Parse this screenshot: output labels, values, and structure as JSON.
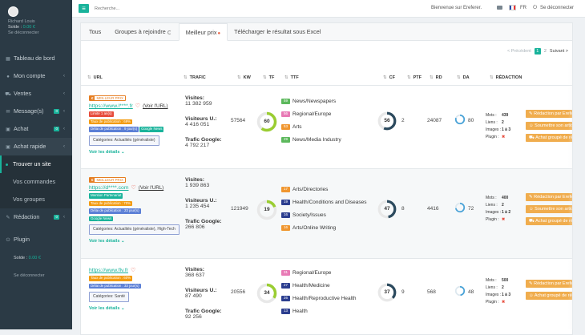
{
  "user": {
    "name": "Richard Louis",
    "balance_label": "Solde :",
    "balance": "0.00 €",
    "logout": "Se déconnecter"
  },
  "nav": [
    {
      "label": "Tableau de bord",
      "icon": "grid-icon"
    },
    {
      "label": "Mon compte",
      "icon": "user-icon",
      "chevron": true
    },
    {
      "label": "Ventes",
      "icon": "cart-icon",
      "chevron": true
    },
    {
      "label": "Message(s)",
      "icon": "envelope-icon",
      "badge": "0",
      "chevron": true
    },
    {
      "label": "Achat",
      "icon": "bag-icon",
      "badge": "0",
      "chevron": true
    },
    {
      "label": "Achat rapide",
      "icon": "bag-icon",
      "chevron": true,
      "open": true
    }
  ],
  "subnav": [
    {
      "label": "Trouver un site",
      "active": true
    },
    {
      "label": "Vos commandes",
      "active": false
    },
    {
      "label": "Vos groupes",
      "active": false
    }
  ],
  "nav2": [
    {
      "label": "Rédaction",
      "icon": "pencil-icon",
      "badge": "0",
      "chevron": true
    }
  ],
  "plugin": {
    "label": "Plugin",
    "balance_label": "Solde :",
    "balance": "0.00 €",
    "logout": "Se déconnecter"
  },
  "topbar": {
    "search_placeholder": "Recherche...",
    "welcome": "Bienvenue sur Ereferer.",
    "lang": "FR",
    "logout": "Se déconnecter"
  },
  "tabs": [
    {
      "label": "Tous",
      "active": false
    },
    {
      "label": "Groupes à rejoindre",
      "active": false,
      "spinner": true
    },
    {
      "label": "Meilleur prix",
      "active": true,
      "fire": true
    },
    {
      "label": "Télécharger le résultat sous Excel",
      "active": false
    }
  ],
  "pager": {
    "prev": "< Précédent",
    "current": "1",
    "page2": "2",
    "next": "Suivant >"
  },
  "columns": [
    "URL",
    "TRAFIC",
    "KW",
    "TF",
    "TTF",
    "CF",
    "PTF",
    "RD",
    "DA",
    "RÉDACTION"
  ],
  "rows": [
    {
      "best": true,
      "best_label": "MEILLEUR PRIX",
      "best_icon": "€",
      "url": "https://www.l****.fr",
      "voir": "(Voir l'URL)",
      "tags": [
        [
          {
            "text": "Limité 1 an(s)",
            "color": "red"
          }
        ],
        [
          {
            "text": "Taux de publication : 69%",
            "color": "orange"
          }
        ],
        [
          {
            "text": "Délai de publication : 9 jour(s)",
            "color": "blue"
          },
          {
            "text": "Google News",
            "color": "green"
          }
        ]
      ],
      "category": "Catégories: Actualités (généraliste)",
      "details": "Voir les détails ⌄",
      "visits_label": "Visites:",
      "visits": "11 382 959",
      "vu_label": "Visiteurs U.:",
      "vu": "4 416 051",
      "tg_label": "Trafic Google:",
      "tg": "4 792 217",
      "kw": "57564",
      "tf": "60",
      "tf_pct": 0.6,
      "cf": "56",
      "cf_pct": 0.56,
      "ptf": "2",
      "rd": "24087",
      "da": "80",
      "da_pct": 0.8,
      "ttf": [
        {
          "n": "59",
          "label": "News/Newspapers",
          "color": "#5cb85c"
        },
        {
          "n": "56",
          "label": "Regional/Europe",
          "color": "#e87ab5"
        },
        {
          "n": "53",
          "label": "Arts",
          "color": "#f0962f"
        },
        {
          "n": "29",
          "label": "News/Media Industry",
          "color": "#5cb85c"
        }
      ],
      "red": {
        "mots_label": "Mots :",
        "mots": "439",
        "liens_label": "Liens :",
        "liens": "2",
        "images_label": "Images :",
        "images": "1 à 3",
        "plugin_label": "Plugin :",
        "plugin": "✖"
      },
      "buttons": [
        "Rédaction par Ereferer",
        "Soumettre son article",
        "Achat groupé de rédaction"
      ]
    },
    {
      "best": true,
      "best_label": "MEILLEUR PRIX",
      "best_icon": "€",
      "url": "https://d****.com",
      "voir": "(Voir l'URL)",
      "tags": [
        [
          {
            "text": "Mention Partenariat",
            "color": "green"
          }
        ],
        [
          {
            "text": "Taux de publication : 70%",
            "color": "orange"
          }
        ],
        [
          {
            "text": "Délai de publication : 23 jour(s)",
            "color": "blue"
          }
        ],
        [
          {
            "text": "Google News",
            "color": "green"
          }
        ]
      ],
      "category": "Catégories: Actualités (généraliste), High-Tech",
      "details": "Voir les détails ⌄",
      "visits_label": "Visites:",
      "visits": "1 939 863",
      "vu_label": "Visiteurs U.:",
      "vu": "1 235 454",
      "tg_label": "Trafic Google:",
      "tg": "266 806",
      "kw": "121949",
      "tf": "19",
      "tf_pct": 0.19,
      "cf": "47",
      "cf_pct": 0.47,
      "ptf": "8",
      "rd": "4416",
      "da": "72",
      "da_pct": 0.72,
      "ttf": [
        {
          "n": "17",
          "label": "Arts/Directories",
          "color": "#f0962f"
        },
        {
          "n": "19",
          "label": "Health/Conditions and Diseases",
          "color": "#2c3e8f"
        },
        {
          "n": "16",
          "label": "Society/Issues",
          "color": "#2c3e8f"
        },
        {
          "n": "16",
          "label": "Arts/Online Writing",
          "color": "#f0962f"
        }
      ],
      "red": {
        "mots_label": "Mots :",
        "mots": "400",
        "liens_label": "Liens :",
        "liens": "2",
        "images_label": "Images :",
        "images": "1 à 2",
        "plugin_label": "Plugin :",
        "plugin": "✖"
      },
      "buttons": [
        "Rédaction par Ereferer",
        "Soumettre son article",
        "Achat groupé de rédaction"
      ]
    },
    {
      "best": false,
      "url": "https://www.flv.fr",
      "voir": "",
      "tags": [
        [
          {
            "text": "Taux de publication : 60%",
            "color": "orange"
          }
        ],
        [
          {
            "text": "Délai de publication : 33 jour(s)",
            "color": "blue"
          }
        ]
      ],
      "category": "Catégories: Santé",
      "details": "Voir les détails ⌄",
      "visits_label": "Visites:",
      "visits": "368 637",
      "vu_label": "Visiteurs U.:",
      "vu": "87 490",
      "tg_label": "Trafic Google:",
      "tg": "92 256",
      "kw": "20556",
      "tf": "34",
      "tf_pct": 0.34,
      "cf": "37",
      "cf_pct": 0.37,
      "ptf": "9",
      "rd": "568",
      "da": "48",
      "da_pct": 0.48,
      "ttf": [
        {
          "n": "31",
          "label": "Regional/Europe",
          "color": "#e87ab5"
        },
        {
          "n": "27",
          "label": "Health/Medicine",
          "color": "#2c3e8f"
        },
        {
          "n": "26",
          "label": "Health/Reproductive Health",
          "color": "#2c3e8f"
        },
        {
          "n": "13",
          "label": "Health",
          "color": "#2c3e8f"
        }
      ],
      "red": {
        "mots_label": "Mots :",
        "mots": "500",
        "liens_label": "Liens :",
        "liens": "2",
        "images_label": "Images :",
        "images": "1 à 3",
        "plugin_label": "Plugin :",
        "plugin": "✖"
      },
      "buttons": [
        "Rédaction par Ereferer",
        "Achat groupé de rédaction"
      ]
    }
  ]
}
